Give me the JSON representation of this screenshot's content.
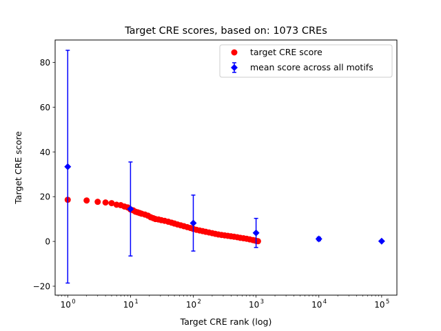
{
  "chart_data": {
    "type": "scatter",
    "title": "Target CRE scores, based on: 1073 CREs",
    "xlabel": "Target CRE rank (log)",
    "ylabel": "Target CRE score",
    "xscale": "log",
    "xlim": [
      0.63,
      175000
    ],
    "ylim": [
      -24,
      90
    ],
    "x_ticks": [
      {
        "value": 1,
        "exp": "0"
      },
      {
        "value": 10,
        "exp": "1"
      },
      {
        "value": 100,
        "exp": "2"
      },
      {
        "value": 1000,
        "exp": "3"
      },
      {
        "value": 10000,
        "exp": "4"
      },
      {
        "value": 100000,
        "exp": "5"
      }
    ],
    "x_tick_base": "10",
    "y_ticks": [
      "−20",
      "0",
      "20",
      "40",
      "60",
      "80"
    ],
    "y_tick_values": [
      -20,
      0,
      20,
      40,
      60,
      80
    ],
    "grid": false,
    "legend_position": "top-right",
    "series": [
      {
        "name": "target CRE score",
        "marker": "circle",
        "color": "#ff0000",
        "points": [
          [
            1,
            18.6
          ],
          [
            2,
            18.3
          ],
          [
            3,
            17.7
          ],
          [
            4,
            17.4
          ],
          [
            5,
            17.1
          ],
          [
            6,
            16.4
          ],
          [
            7,
            16.2
          ],
          [
            8,
            15.6
          ],
          [
            9,
            15.2
          ],
          [
            10,
            14.3
          ],
          [
            11,
            13.9
          ],
          [
            12,
            13.3
          ],
          [
            13,
            13.0
          ],
          [
            14,
            12.7
          ],
          [
            15,
            12.4
          ],
          [
            17,
            12.0
          ],
          [
            19,
            11.5
          ],
          [
            21,
            10.8
          ],
          [
            23,
            10.4
          ],
          [
            25,
            10.0
          ],
          [
            28,
            9.8
          ],
          [
            31,
            9.5
          ],
          [
            35,
            9.2
          ],
          [
            40,
            8.8
          ],
          [
            45,
            8.4
          ],
          [
            50,
            8.0
          ],
          [
            56,
            7.6
          ],
          [
            63,
            7.2
          ],
          [
            71,
            6.8
          ],
          [
            80,
            6.4
          ],
          [
            90,
            6.0
          ],
          [
            100,
            5.6
          ],
          [
            112,
            5.2
          ],
          [
            126,
            4.9
          ],
          [
            141,
            4.6
          ],
          [
            158,
            4.3
          ],
          [
            178,
            4.0
          ],
          [
            200,
            3.7
          ],
          [
            224,
            3.4
          ],
          [
            251,
            3.1
          ],
          [
            282,
            2.9
          ],
          [
            316,
            2.7
          ],
          [
            355,
            2.5
          ],
          [
            398,
            2.3
          ],
          [
            447,
            2.1
          ],
          [
            501,
            1.9
          ],
          [
            562,
            1.6
          ],
          [
            631,
            1.4
          ],
          [
            708,
            1.2
          ],
          [
            794,
            0.9
          ],
          [
            891,
            0.6
          ],
          [
            960,
            0.4
          ],
          [
            1020,
            0.2
          ],
          [
            1073,
            0.1
          ]
        ]
      },
      {
        "name": "mean score across all motifs",
        "marker": "diamond",
        "color": "#0000ff",
        "points": [
          {
            "x": 1,
            "y": 33.4,
            "err": 52.0
          },
          {
            "x": 10,
            "y": 14.5,
            "err": 21.0
          },
          {
            "x": 100,
            "y": 8.2,
            "err": 12.5
          },
          {
            "x": 1000,
            "y": 3.8,
            "err": 6.5
          },
          {
            "x": 10000,
            "y": 1.1,
            "err": 0.8
          },
          {
            "x": 100000,
            "y": 0.1,
            "err": 0.3
          }
        ]
      }
    ]
  }
}
